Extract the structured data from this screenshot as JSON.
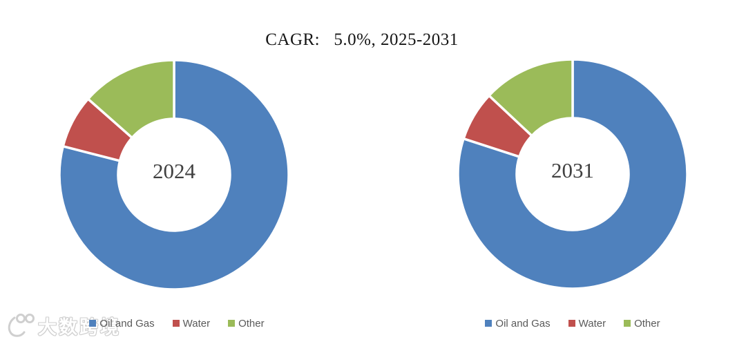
{
  "header": {
    "title": "CAGR:   5.0%, 2025-2031"
  },
  "chart_data": {
    "type": "pie",
    "subtype": "donut",
    "title": "CAGR:   5.0%, 2025-2031",
    "categories": [
      "Oil and Gas",
      "Water",
      "Other"
    ],
    "colors": [
      "#4F81BD",
      "#C0504D",
      "#9BBB59"
    ],
    "unit": "percent (estimated from slice angles)",
    "legend_position": "bottom",
    "hole_ratio": 0.49,
    "charts": [
      {
        "center_label": "2024",
        "values": [
          79,
          7.5,
          13.5
        ]
      },
      {
        "center_label": "2031",
        "values": [
          80,
          7,
          13
        ]
      }
    ]
  },
  "watermark": {
    "logo": "100-smile-logo",
    "text": "大数跨境"
  }
}
